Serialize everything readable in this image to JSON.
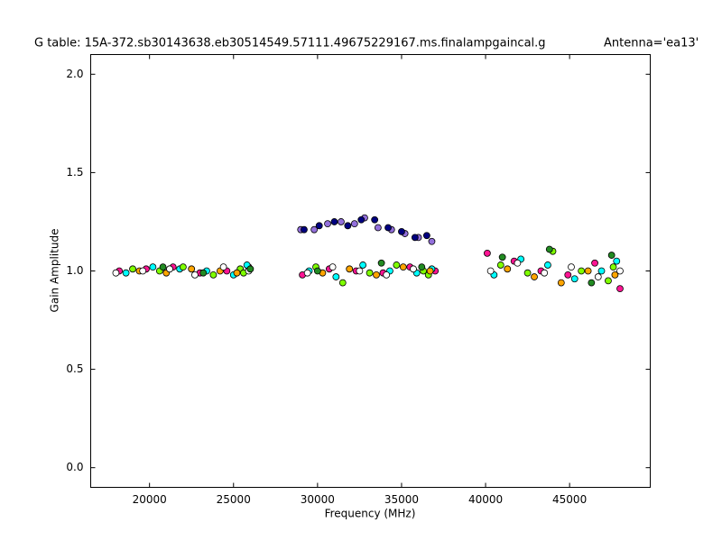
{
  "chart_data": {
    "type": "scatter",
    "title": "G table: 15A-372.sb30143638.eb30514549.57111.49675229167.ms.finalampgaincal.g",
    "annotation": "Antenna='ea13'",
    "x_label": "Frequency (MHz)",
    "y_label": "Gain Amplitude",
    "xlim": [
      16500,
      49800
    ],
    "ylim": [
      -0.1,
      2.1
    ],
    "xticks": [
      20000,
      25000,
      30000,
      35000,
      40000,
      45000
    ],
    "yticks": [
      {
        "value": 0,
        "label": "0.0"
      },
      0.5,
      {
        "value": 1,
        "label": "1.0"
      },
      1.5,
      {
        "value": 2,
        "label": "2.0"
      }
    ],
    "grid": false,
    "series": [
      {
        "color": "#ff1493",
        "x": [
          18200,
          19800,
          21400,
          23000,
          24600,
          25900,
          29100,
          30700,
          32300,
          33900,
          35500,
          37000,
          40100,
          41700,
          43300,
          44900,
          46500,
          48000
        ],
        "y": [
          1.0,
          1.01,
          1.02,
          0.99,
          1.0,
          1.02,
          0.98,
          1.01,
          1.0,
          0.99,
          1.02,
          1.0,
          1.09,
          1.05,
          1.0,
          0.98,
          1.04,
          0.91
        ]
      },
      {
        "color": "#00ffff",
        "x": [
          18600,
          20200,
          21800,
          23400,
          25000,
          25800,
          29500,
          31100,
          32700,
          34300,
          35900,
          36800,
          40500,
          42100,
          43700,
          45300,
          46900,
          47800
        ],
        "y": [
          0.99,
          1.02,
          1.01,
          1.0,
          0.98,
          1.03,
          1.0,
          0.97,
          1.03,
          1.0,
          0.99,
          1.01,
          0.98,
          1.06,
          1.03,
          0.96,
          1.0,
          1.05
        ]
      },
      {
        "color": "#7fff00",
        "x": [
          19000,
          20600,
          22000,
          23800,
          25400,
          25600,
          29900,
          31500,
          33100,
          34700,
          36300,
          36600,
          40900,
          42500,
          44000,
          45700,
          47300,
          47600
        ],
        "y": [
          1.01,
          1.0,
          1.02,
          0.98,
          1.01,
          0.99,
          1.02,
          0.94,
          0.99,
          1.03,
          1.0,
          0.98,
          1.03,
          0.99,
          1.1,
          1.0,
          0.95,
          1.02
        ]
      },
      {
        "color": "#ffa500",
        "x": [
          19400,
          21000,
          22500,
          24200,
          25200,
          30300,
          31900,
          33500,
          35100,
          36700,
          41300,
          42900,
          44500,
          46100,
          47700
        ],
        "y": [
          1.0,
          0.99,
          1.01,
          1.0,
          0.99,
          0.99,
          1.01,
          0.98,
          1.02,
          1.0,
          1.01,
          0.97,
          0.94,
          1.0,
          0.98
        ]
      },
      {
        "color": "#9370db",
        "x": [
          29000,
          29800,
          30600,
          31400,
          32200,
          32800,
          33600,
          34400,
          35200,
          36000,
          36800
        ],
        "y": [
          1.21,
          1.21,
          1.24,
          1.25,
          1.24,
          1.27,
          1.22,
          1.21,
          1.19,
          1.17,
          1.15
        ]
      },
      {
        "color": "#ffffff",
        "x": [
          18000,
          19600,
          21200,
          22700,
          24400,
          25900,
          29400,
          30900,
          32500,
          34100,
          35700,
          40300,
          41900,
          43500,
          45100,
          46700,
          48000
        ],
        "y": [
          0.99,
          1.0,
          1.01,
          0.98,
          1.02,
          1.0,
          0.99,
          1.02,
          1.0,
          0.98,
          1.01,
          1.0,
          1.04,
          0.99,
          1.02,
          0.97,
          1.0
        ]
      },
      {
        "color": "#000080",
        "x": [
          29200,
          30100,
          31000,
          31800,
          32600,
          33400,
          34200,
          35000,
          35800,
          36500
        ],
        "y": [
          1.21,
          1.23,
          1.25,
          1.23,
          1.26,
          1.26,
          1.22,
          1.2,
          1.17,
          1.18
        ]
      },
      {
        "color": "#228b22",
        "x": [
          20800,
          23200,
          26000,
          30000,
          33800,
          36200,
          41000,
          43800,
          46300,
          47500
        ],
        "y": [
          1.02,
          0.99,
          1.01,
          1.0,
          1.04,
          1.02,
          1.07,
          1.11,
          0.94,
          1.08
        ]
      }
    ]
  }
}
